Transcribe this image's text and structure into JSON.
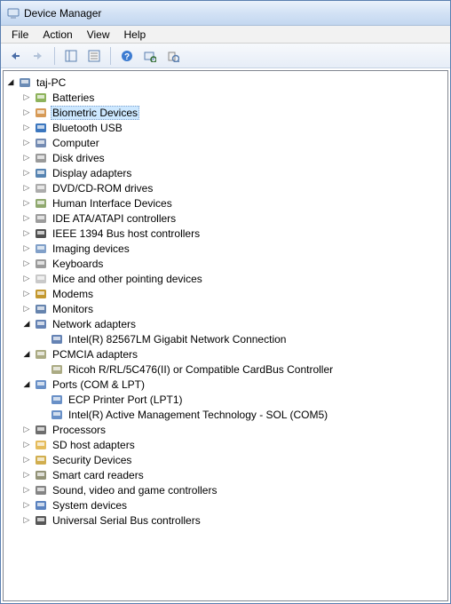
{
  "window": {
    "title": "Device Manager"
  },
  "menu": [
    "File",
    "Action",
    "View",
    "Help"
  ],
  "root": {
    "label": "taj-PC"
  },
  "nodes": [
    {
      "label": "Batteries",
      "icon": "battery",
      "expanded": false,
      "children": []
    },
    {
      "label": "Biometric Devices",
      "icon": "biometric",
      "expanded": false,
      "selected": true,
      "children": []
    },
    {
      "label": "Bluetooth USB",
      "icon": "bluetooth",
      "expanded": false,
      "children": []
    },
    {
      "label": "Computer",
      "icon": "computer",
      "expanded": false,
      "children": []
    },
    {
      "label": "Disk drives",
      "icon": "disk",
      "expanded": false,
      "children": []
    },
    {
      "label": "Display adapters",
      "icon": "display",
      "expanded": false,
      "children": []
    },
    {
      "label": "DVD/CD-ROM drives",
      "icon": "cdrom",
      "expanded": false,
      "children": []
    },
    {
      "label": "Human Interface Devices",
      "icon": "hid",
      "expanded": false,
      "children": []
    },
    {
      "label": "IDE ATA/ATAPI controllers",
      "icon": "ide",
      "expanded": false,
      "children": []
    },
    {
      "label": "IEEE 1394 Bus host controllers",
      "icon": "ieee",
      "expanded": false,
      "children": []
    },
    {
      "label": "Imaging devices",
      "icon": "imaging",
      "expanded": false,
      "children": []
    },
    {
      "label": "Keyboards",
      "icon": "keyboard",
      "expanded": false,
      "children": []
    },
    {
      "label": "Mice and other pointing devices",
      "icon": "mouse",
      "expanded": false,
      "children": []
    },
    {
      "label": "Modems",
      "icon": "modem",
      "expanded": false,
      "children": []
    },
    {
      "label": "Monitors",
      "icon": "monitor",
      "expanded": false,
      "children": []
    },
    {
      "label": "Network adapters",
      "icon": "network",
      "expanded": true,
      "children": [
        {
          "label": "Intel(R) 82567LM Gigabit Network Connection",
          "icon": "network"
        }
      ]
    },
    {
      "label": "PCMCIA adapters",
      "icon": "pcmcia",
      "expanded": true,
      "children": [
        {
          "label": "Ricoh R/RL/5C476(II) or Compatible CardBus Controller",
          "icon": "pcmcia"
        }
      ]
    },
    {
      "label": "Ports (COM & LPT)",
      "icon": "port",
      "expanded": true,
      "children": [
        {
          "label": "ECP Printer Port (LPT1)",
          "icon": "port"
        },
        {
          "label": "Intel(R) Active Management Technology - SOL (COM5)",
          "icon": "port"
        }
      ]
    },
    {
      "label": "Processors",
      "icon": "cpu",
      "expanded": false,
      "children": []
    },
    {
      "label": "SD host adapters",
      "icon": "sd",
      "expanded": false,
      "children": []
    },
    {
      "label": "Security Devices",
      "icon": "security",
      "expanded": false,
      "children": []
    },
    {
      "label": "Smart card readers",
      "icon": "smartcard",
      "expanded": false,
      "children": []
    },
    {
      "label": "Sound, video and game controllers",
      "icon": "sound",
      "expanded": false,
      "children": []
    },
    {
      "label": "System devices",
      "icon": "system",
      "expanded": false,
      "children": []
    },
    {
      "label": "Universal Serial Bus controllers",
      "icon": "usb",
      "expanded": false,
      "children": []
    }
  ],
  "iconColors": {
    "battery": "#7aa640",
    "biometric": "#d08838",
    "bluetooth": "#1a5fb4",
    "computer": "#5d78a6",
    "disk": "#888888",
    "display": "#3a6ea5",
    "cdrom": "#9d9d9d",
    "hid": "#7d9a56",
    "ide": "#8b8b8b",
    "ieee": "#333333",
    "imaging": "#6b8fbf",
    "keyboard": "#8a8a8a",
    "mouse": "#bfbfbf",
    "modem": "#b8860b",
    "monitor": "#4b6fa0",
    "network": "#4a6da7",
    "pcmcia": "#9c9c6e",
    "port": "#4f7dbd",
    "cpu": "#555555",
    "sd": "#e0b040",
    "security": "#c9a030",
    "smartcard": "#808060",
    "sound": "#707070",
    "system": "#3e6db5",
    "usb": "#3b3b3b",
    "pc": "#5077a8"
  }
}
